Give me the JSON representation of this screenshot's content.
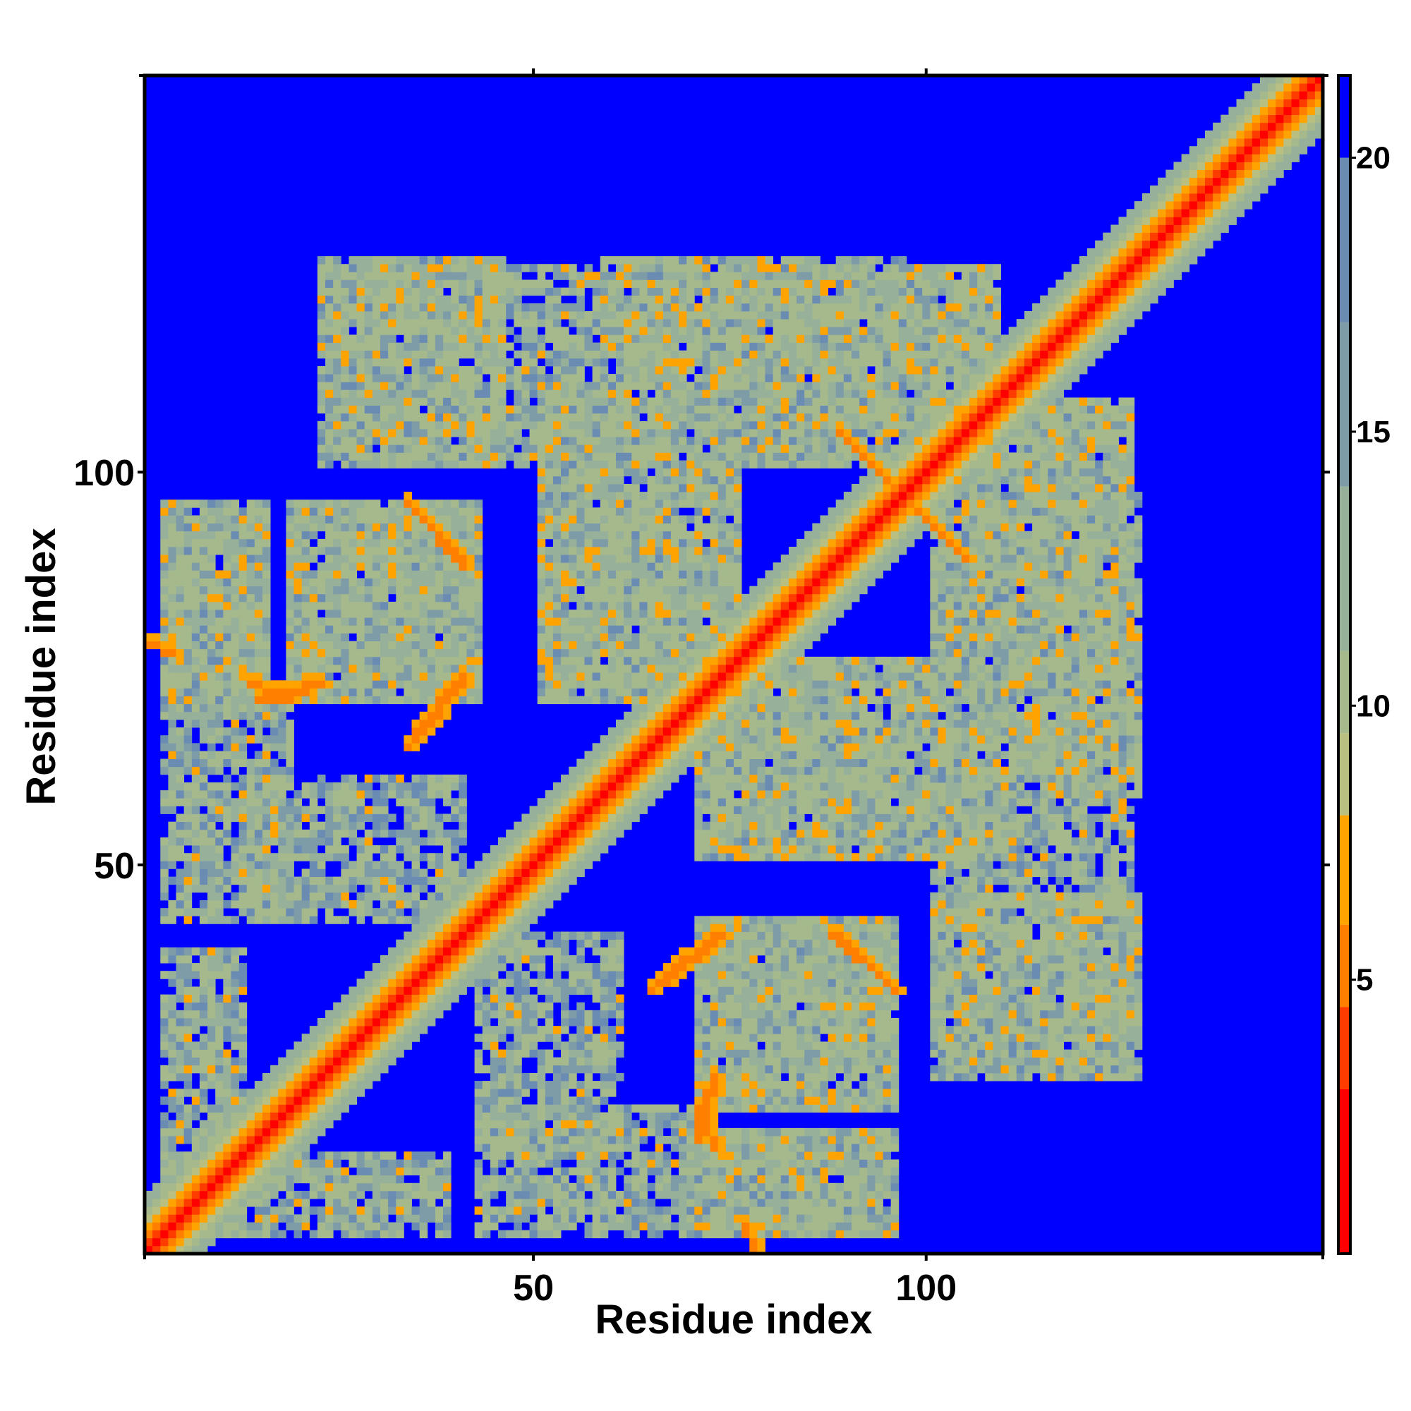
{
  "chart_data": {
    "type": "heatmap",
    "title": "",
    "xlabel": "Residue index",
    "ylabel": "Residue index",
    "n_residues": 150,
    "xlim": [
      0.5,
      150.5
    ],
    "ylim": [
      0.5,
      150.5
    ],
    "x_ticks": [
      50,
      100
    ],
    "y_ticks": [
      50,
      100
    ],
    "colorbar": {
      "ticks": [
        5,
        10,
        15,
        20
      ],
      "range": [
        0,
        21.5
      ],
      "placement": "right"
    },
    "color_scale": [
      {
        "max": 3,
        "color": "#ff0000"
      },
      {
        "max": 4.5,
        "color": "#ff3c00"
      },
      {
        "max": 6,
        "color": "#ff8000"
      },
      {
        "max": 8,
        "color": "#ffa300"
      },
      {
        "max": 9.5,
        "color": "#b8bf80"
      },
      {
        "max": 11,
        "color": "#a5b98c"
      },
      {
        "max": 14,
        "color": "#97b09a"
      },
      {
        "max": 17,
        "color": "#7e9ca8"
      },
      {
        "max": 20,
        "color": "#6a8cb3"
      },
      {
        "max": 21.5,
        "color": "#0000ff"
      }
    ],
    "background_value": 21.5,
    "diagonal_band": [
      {
        "offset": 0,
        "value": 1
      },
      {
        "offset": 1,
        "value": 3.8
      },
      {
        "offset": 2,
        "value": 5.5
      },
      {
        "offset": 3,
        "value": 7
      },
      {
        "offset": 4,
        "value": 9
      },
      {
        "offset": 5,
        "value": 10.5
      },
      {
        "offset": 6,
        "value": 12
      },
      {
        "offset": 7,
        "value": 14
      }
    ],
    "contact_clusters": [
      {
        "i": [
          2,
          38
        ],
        "j": [
          2,
          12
        ],
        "value": 11
      },
      {
        "i": [
          12,
          40
        ],
        "j": [
          42,
          60
        ],
        "value": 11
      },
      {
        "i": [
          30,
          40
        ],
        "j": [
          100,
          125
        ],
        "value": 11
      },
      {
        "i": [
          42,
          70
        ],
        "j": [
          2,
          18
        ],
        "value": 11
      },
      {
        "i": [
          42,
          72
        ],
        "j": [
          100,
          125
        ],
        "value": 11
      },
      {
        "i": [
          68,
          95
        ],
        "j": [
          2,
          15
        ],
        "value": 11
      },
      {
        "i": [
          70,
          95
        ],
        "j": [
          18,
          42
        ],
        "value": 11
      },
      {
        "i": [
          70,
          110
        ],
        "j": [
          50,
          75
        ],
        "value": 11
      },
      {
        "i": [
          82,
          108
        ],
        "j": [
          100,
          125
        ],
        "value": 11
      },
      {
        "i": [
          100,
          126
        ],
        "j": [
          22,
          45
        ],
        "value": 11
      },
      {
        "i": [
          100,
          126
        ],
        "j": [
          58,
          85
        ],
        "value": 11
      },
      {
        "i": [
          100,
          126
        ],
        "j": [
          88,
          96
        ],
        "value": 11
      },
      {
        "i": [
          2,
          15
        ],
        "j": [
          68,
          95
        ],
        "value": 11
      },
      {
        "i": [
          18,
          42
        ],
        "j": [
          70,
          95
        ],
        "value": 11
      },
      {
        "i": [
          50,
          75
        ],
        "j": [
          70,
          110
        ],
        "value": 11
      },
      {
        "i": [
          100,
          125
        ],
        "j": [
          82,
          108
        ],
        "value": 11
      },
      {
        "i": [
          22,
          45
        ],
        "j": [
          100,
          126
        ],
        "value": 11
      },
      {
        "i": [
          58,
          85
        ],
        "j": [
          100,
          126
        ],
        "value": 11
      }
    ],
    "contact_lines": [
      {
        "from": [
          34,
          94
        ],
        "to": [
          40,
          88
        ],
        "value": 6
      },
      {
        "from": [
          33,
          64
        ],
        "to": [
          40,
          72
        ],
        "value": 6
      },
      {
        "from": [
          66,
          34
        ],
        "to": [
          73,
          40
        ],
        "value": 6
      },
      {
        "from": [
          87,
          40
        ],
        "to": [
          95,
          33
        ],
        "value": 6
      },
      {
        "from": [
          88,
          104
        ],
        "to": [
          94,
          98
        ],
        "value": 6
      },
      {
        "from": [
          98,
          94
        ],
        "to": [
          104,
          88
        ],
        "value": 6
      },
      {
        "from": [
          70,
          15
        ],
        "to": [
          72,
          22
        ],
        "value": 6
      },
      {
        "from": [
          14,
          70
        ],
        "to": [
          22,
          72
        ],
        "value": 6
      },
      {
        "from": [
          0,
          77
        ],
        "to": [
          3,
          76
        ],
        "value": 6
      },
      {
        "from": [
          13,
          72
        ],
        "to": [
          18,
          70
        ],
        "value": 6
      }
    ]
  }
}
